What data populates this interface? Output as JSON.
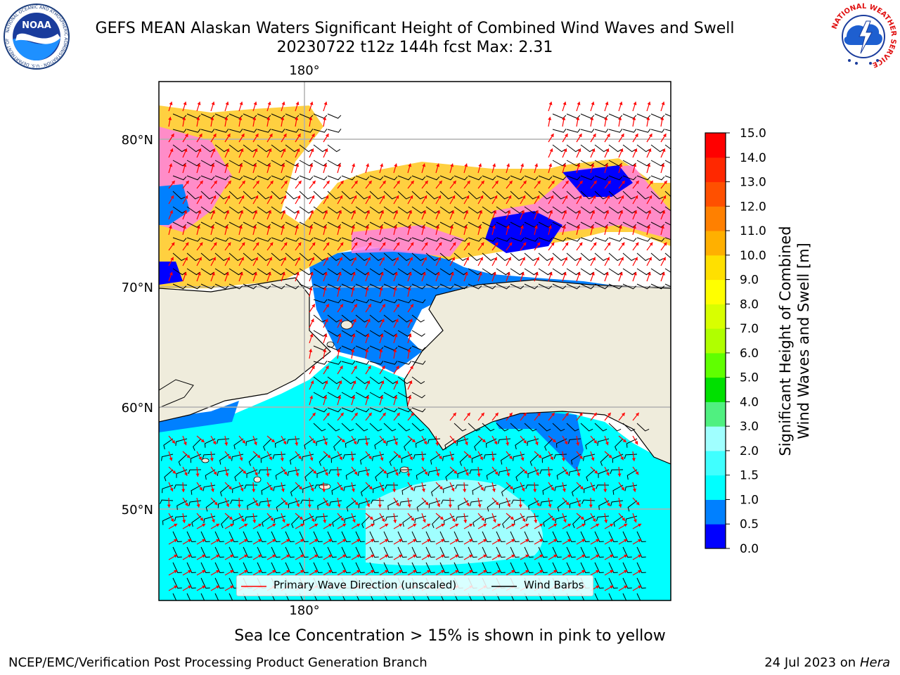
{
  "header": {
    "title_line1": "GEFS MEAN Alaskan Waters Significant Height of Combined Wind Waves and Swell",
    "title_line2": "20230722 t12z 144h fcst   Max: 2.31",
    "left_logo_text": "NOAA",
    "left_logo_ring_text": "NATIONAL OCEANIC AND ATMOSPHERIC ADMINISTRATION · U.S. DEPARTMENT OF COMMERCE",
    "right_logo_ring_text": "NATIONAL WEATHER SERVICE"
  },
  "map": {
    "top_lon_label": "180°",
    "bottom_lon_label": "180°",
    "lat_labels": [
      "80°N",
      "70°N",
      "60°N",
      "50°N"
    ],
    "colors": {
      "land": "#efecdc",
      "frame": "#000000",
      "gridline": "#b0b0b0",
      "wave_arrow": "#ff0000",
      "wind_barb": "#000000",
      "ice_pink": "#ff80e0",
      "ice_yellow": "#ffd040"
    }
  },
  "legend": {
    "primary_wave_label": "Primary Wave Direction (unscaled)",
    "wind_barbs_label": "Wind Barbs"
  },
  "colorbar": {
    "label_line1": "Significant Height of Combined",
    "label_line2": "Wind Waves and Swell [m]",
    "ticks": [
      "15.0",
      "14.0",
      "13.0",
      "12.0",
      "11.0",
      "10.0",
      "9.0",
      "8.0",
      "7.0",
      "6.0",
      "5.0",
      "4.0",
      "3.0",
      "2.0",
      "1.5",
      "1.0",
      "0.5",
      "0.0"
    ],
    "bin_colors_bottom_to_top": [
      "#0000ff",
      "#0080ff",
      "#00ffff",
      "#40ffff",
      "#a0ffff",
      "#50f080",
      "#00e000",
      "#60ff00",
      "#b0ff00",
      "#d8ff00",
      "#ffff00",
      "#ffe000",
      "#ffb000",
      "#ff8000",
      "#ff5000",
      "#ff2800",
      "#ff0000"
    ]
  },
  "caption": "Sea Ice Concentration > 15% is shown in pink to yellow",
  "footer": {
    "left": "NCEP/EMC/Verification Post Processing Product Generation Branch",
    "right_prefix": "24 Jul 2023 on ",
    "right_host": "Hera"
  }
}
